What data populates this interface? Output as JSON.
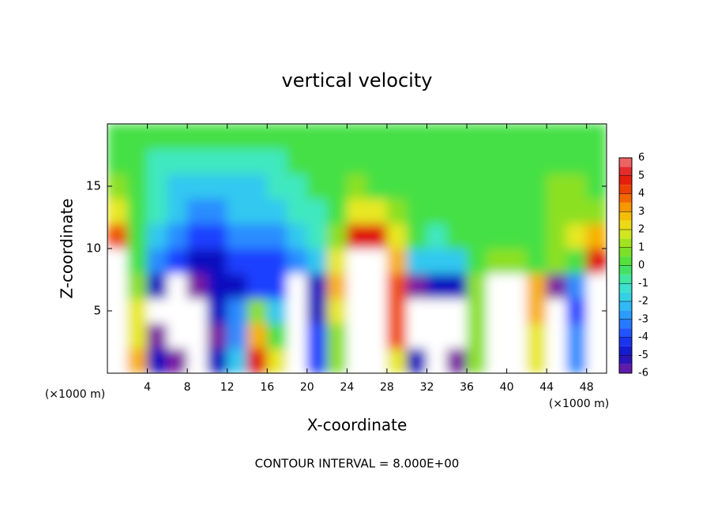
{
  "chart_data": {
    "type": "heatmap",
    "title": "vertical velocity",
    "x_label": "X-coordinate",
    "y_label": "Z-coordinate",
    "x_unit_left": "(×1000 m)",
    "x_unit_right": "(×1000 m)",
    "footer": "CONTOUR INTERVAL = 8.000E+00",
    "xlim": [
      0,
      50
    ],
    "ylim": [
      0,
      20
    ],
    "xticks": [
      4,
      8,
      12,
      16,
      20,
      24,
      28,
      32,
      36,
      40,
      44,
      48
    ],
    "yticks": [
      5,
      10,
      15
    ],
    "x": [
      1,
      3,
      5,
      7,
      9,
      11,
      13,
      15,
      17,
      19,
      21,
      23,
      25,
      27,
      29,
      31,
      33,
      35,
      37,
      39,
      41,
      43,
      45,
      47,
      49
    ],
    "y": [
      1,
      3,
      5,
      7,
      9,
      11,
      13,
      15,
      17,
      19
    ],
    "z": [
      [
        10,
        3,
        -5,
        -6,
        -10,
        -5,
        -2,
        5,
        2,
        -10,
        -4,
        1,
        10,
        10,
        2,
        -5,
        -10,
        -6,
        1,
        10,
        10,
        2,
        -8,
        -3,
        10
      ],
      [
        10,
        2,
        -6,
        -10,
        -10,
        -6,
        -3,
        3,
        0,
        -10,
        -4,
        1,
        10,
        10,
        4,
        -10,
        -10,
        -8,
        1,
        10,
        10,
        2,
        -10,
        -3,
        10
      ],
      [
        10,
        2,
        -8,
        -10,
        -10,
        -5,
        -3,
        1,
        -2,
        -10,
        -5,
        2,
        10,
        10,
        4,
        -10,
        -10,
        -10,
        1,
        10,
        10,
        3,
        -10,
        -4,
        10
      ],
      [
        10,
        1,
        -5,
        -8,
        -6,
        -5,
        -5,
        -4,
        -4,
        -8,
        -5,
        3,
        10,
        10,
        4,
        -6,
        -5,
        -5,
        1,
        8,
        7,
        3,
        -6,
        -3,
        10
      ],
      [
        7,
        0,
        -3,
        -4,
        -5,
        -5,
        -4,
        -4,
        -4,
        -3,
        -2,
        2,
        10,
        8,
        3,
        -2,
        -2,
        -2,
        0,
        1,
        1,
        0,
        1,
        0,
        5
      ],
      [
        4,
        0,
        -2,
        -3,
        -4,
        -4,
        -3,
        -3,
        -3,
        -2,
        -1,
        1,
        5,
        5,
        2,
        0,
        -1,
        0,
        0,
        0,
        0,
        0,
        1,
        2,
        3
      ],
      [
        2,
        0,
        -1,
        -2,
        -3,
        -3,
        -2,
        -2,
        -2,
        -1,
        -1,
        0,
        2,
        2,
        1,
        0,
        0,
        0,
        0,
        0,
        0,
        0,
        1,
        1,
        1
      ],
      [
        1,
        0,
        -1,
        -2,
        -2,
        -2,
        -2,
        -2,
        -1,
        -1,
        0,
        0,
        1,
        0,
        0,
        0,
        0,
        0,
        0,
        0,
        0,
        0,
        1,
        1,
        0
      ],
      [
        0,
        0,
        -1,
        -1,
        -1,
        -1,
        -1,
        -1,
        -1,
        0,
        0,
        0,
        0,
        0,
        0,
        0,
        0,
        0,
        0,
        0,
        0,
        0,
        0,
        0,
        0
      ],
      [
        0,
        0,
        0,
        0,
        0,
        0,
        0,
        0,
        0,
        0,
        0,
        0,
        0,
        0,
        0,
        0,
        0,
        0,
        0,
        0,
        0,
        0,
        0,
        0,
        0
      ]
    ],
    "colorbar_ticks": [
      -6,
      -5,
      -4,
      -3,
      -2,
      -1,
      0,
      1,
      2,
      3,
      4,
      5,
      6
    ],
    "colorbar_colors": [
      "#7b1fa2",
      "#1010c0",
      "#1e40ff",
      "#2a8cff",
      "#33c8f0",
      "#40e8c0",
      "#45e045",
      "#8ce020",
      "#e8e820",
      "#f8b000",
      "#f05000",
      "#e01010",
      "#f08080"
    ],
    "out_of_range_color": "#ffffff"
  }
}
